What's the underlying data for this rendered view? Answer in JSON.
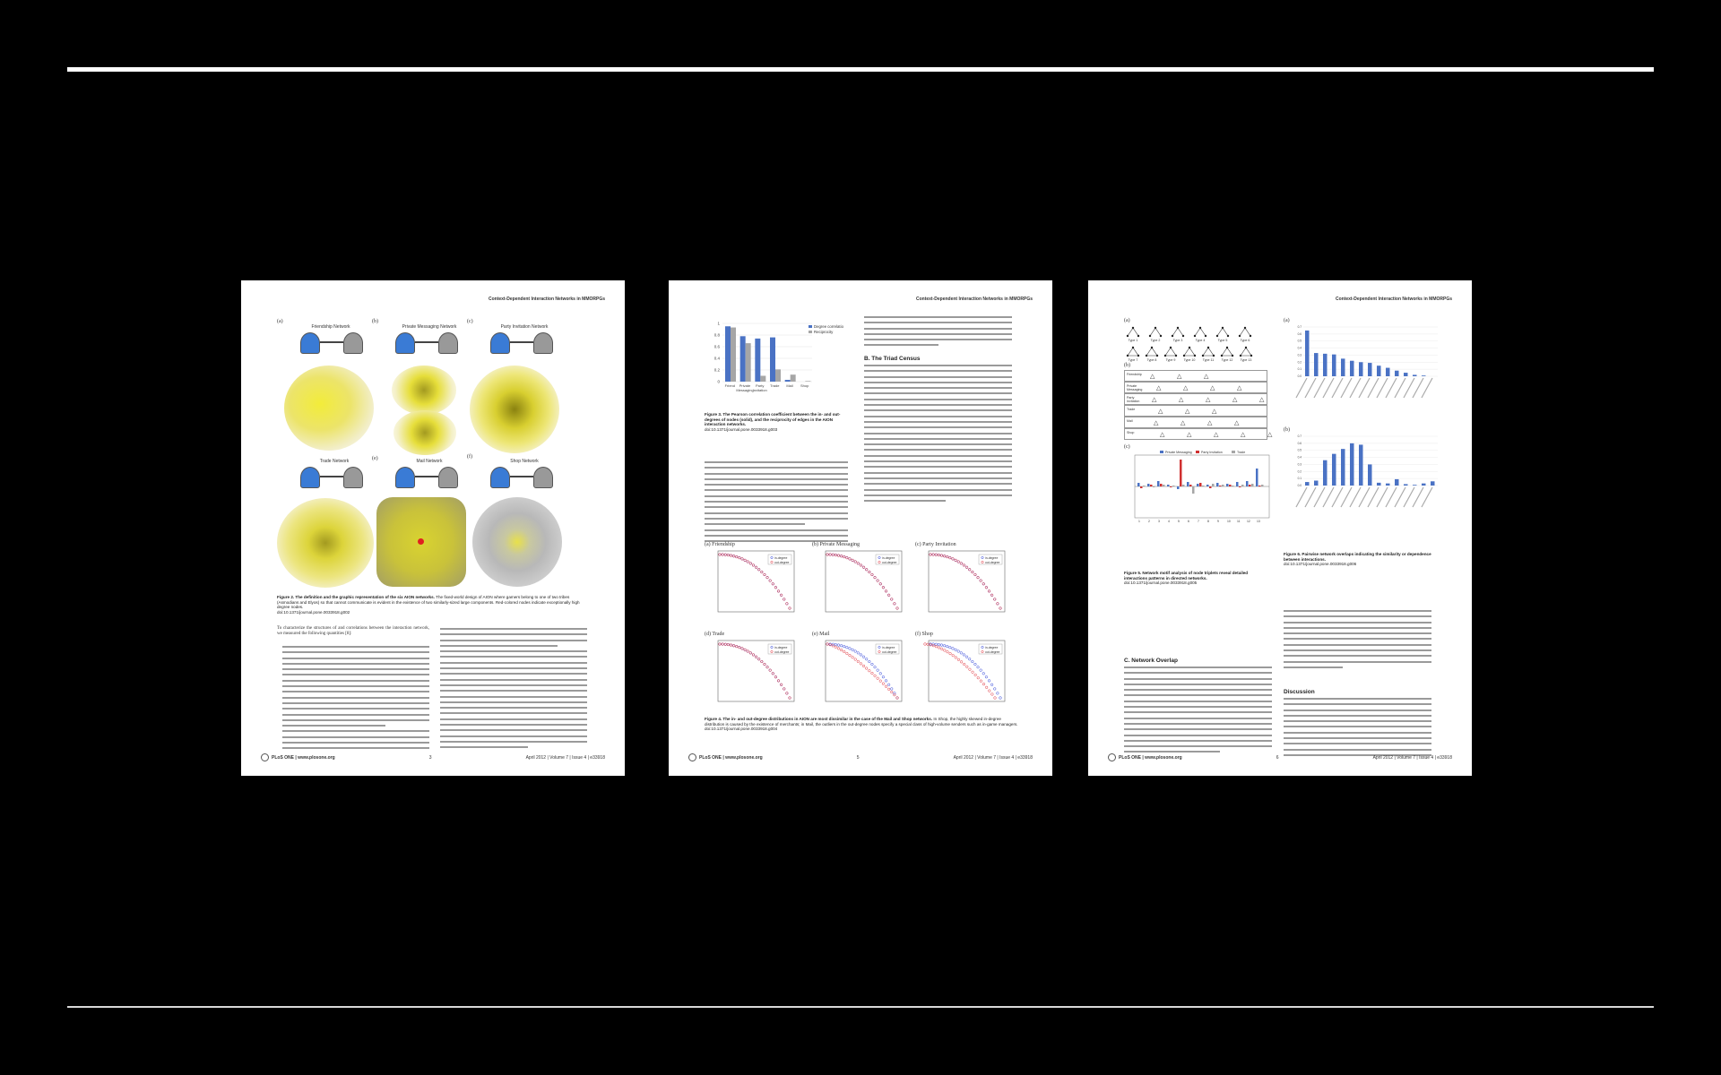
{
  "pages": [
    {
      "running_head": "Context-Dependent Interaction Networks in MMORPGs",
      "panels": [
        {
          "label": "(a)",
          "title": "Friendship Network"
        },
        {
          "label": "(b)",
          "title": "Private Messaging Network"
        },
        {
          "label": "(c)",
          "title": "Party Invitation Network"
        },
        {
          "label": "(d)",
          "title": "Trade Network"
        },
        {
          "label": "(e)",
          "title": "Mail Network"
        },
        {
          "label": "(f)",
          "title": "Shop Network"
        }
      ],
      "caption_title": "Figure 2. The definition and the graphic representation of the six AION networks.",
      "caption_body": "The fixed-world design of AION where gamers belong to one of two tribes (Asmodians and Elyos) so that cannot communicate is evident in the existence of two similarly-sized large components. Red-colored nodes indicate exceptionally high degree nodes.",
      "caption_doi": "doi:10.1371/journal.pone.0033918.g002",
      "body_left_intro": "To characterize the structures of and correlations between the interaction network, we measured the following quantities [8]:",
      "footer_left": "PLoS ONE | www.plosone.org",
      "footer_page": "3",
      "footer_right": "April 2012 | Volume 7 | Issue 4 | e33918"
    },
    {
      "running_head": "Context-Dependent Interaction Networks in MMORPGs",
      "bar_chart": {
        "type": "bar",
        "categories": [
          "Friend",
          "Private Messaging",
          "Party Invitation",
          "Trade",
          "Mail",
          "Shop"
        ],
        "series": [
          {
            "name": "Degree correlation",
            "values": [
              0.95,
              0.78,
              0.74,
              0.76,
              0.03,
              0.0
            ]
          },
          {
            "name": "Reciprocity",
            "values": [
              0.93,
              0.66,
              0.1,
              0.21,
              0.12,
              0.01
            ]
          }
        ],
        "ylim": [
          0,
          1
        ],
        "yticks": [
          "0",
          "0.2",
          "0.4",
          "0.6",
          "0.8",
          "1"
        ],
        "colors": [
          "#4a72c4",
          "#a6a6a6"
        ]
      },
      "fig3_caption_title": "Figure 3. The Pearson correlation coefficient between the in- and out-degrees of nodes (solid), and the reciprocity of edges in the AION interaction networks.",
      "fig3_caption_doi": "doi:10.1371/journal.pone.0033918.g003",
      "section_head": "B. The Triad Census",
      "degree_panels": [
        {
          "label": "(a) Friendship"
        },
        {
          "label": "(b) Private Messaging"
        },
        {
          "label": "(c) Party Invitation"
        },
        {
          "label": "(d) Trade"
        },
        {
          "label": "(e) Mail"
        },
        {
          "label": "(f) Shop"
        }
      ],
      "degree_legend": [
        "in-degree",
        "out-degree"
      ],
      "fig4_caption_title": "Figure 4. The in- and out-degree distributions in AION are most dissimilar in the case of the Mail and Shop networks.",
      "fig4_caption_body": "In Shop, the highly skewed in-degree distribution is caused by the existence of merchants; in Mail, the outliers in the out-degree nodes specify a special class of high-volume senders such as in-game managers.",
      "fig4_caption_doi": "doi:10.1371/journal.pone.0033918.g004",
      "footer_left": "PLoS ONE | www.plosone.org",
      "footer_page": "5",
      "footer_right": "April 2012 | Volume 7 | Issue 4 | e33918"
    },
    {
      "running_head": "Context-Dependent Interaction Networks in MMORPGs",
      "motif_types": [
        "Type 1",
        "Type 2",
        "Type 3",
        "Type 4",
        "Type 5",
        "Type 6",
        "Type 7",
        "Type 8",
        "Type 9",
        "Type 10",
        "Type 11",
        "Type 12",
        "Type 13"
      ],
      "motif_rows": [
        "Friendship",
        "Private Messaging",
        "Party Invitation",
        "Trade",
        "Mail",
        "Shop"
      ],
      "zscore_legend": [
        "Private Messaging",
        "Party Invitation",
        "Trade"
      ],
      "overlap_chart_a": {
        "type": "bar",
        "values": [
          0.65,
          0.33,
          0.32,
          0.31,
          0.25,
          0.22,
          0.2,
          0.19,
          0.15,
          0.12,
          0.08,
          0.05,
          0.02,
          0.01,
          0.0
        ],
        "ylim": [
          0,
          0.7
        ]
      },
      "overlap_chart_b": {
        "type": "bar",
        "values": [
          0.05,
          0.07,
          0.36,
          0.45,
          0.52,
          0.6,
          0.58,
          0.3,
          0.04,
          0.03,
          0.09,
          0.02,
          0.01,
          0.03,
          0.06
        ],
        "ylim": [
          0,
          0.7
        ]
      },
      "fig5_caption_title": "Figure 5. Network motif analysis of node triplets reveal detailed interactions patterns in directed networks.",
      "fig5_caption_doi": "doi:10.1371/journal.pone.0033918.g005",
      "fig6_caption_title": "Figure 6. Pairwise network overlaps indicating the similarity or dependence between interactions.",
      "fig6_caption_doi": "doi:10.1371/journal.pone.0033918.g006",
      "section_c": "C. Network Overlap",
      "section_discussion": "Discussion",
      "footer_left": "PLoS ONE | www.plosone.org",
      "footer_page": "6",
      "footer_right": "April 2012 | Volume 7 | Issue 4 | e33918"
    }
  ]
}
